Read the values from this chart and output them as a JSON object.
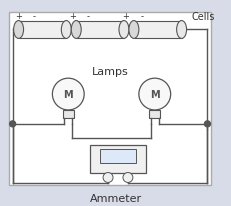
{
  "bg_color": "#d8dce8",
  "white_bg": "#ffffff",
  "line_color": "#555555",
  "border_color": "#999999",
  "title": "Cells",
  "label_lamps": "Lamps",
  "label_ammeter": "Ammeter",
  "plus_minus": [
    "+",
    "-",
    "+",
    "-",
    "+",
    "-"
  ],
  "fig_width": 2.32,
  "fig_height": 2.07,
  "dpi": 100
}
